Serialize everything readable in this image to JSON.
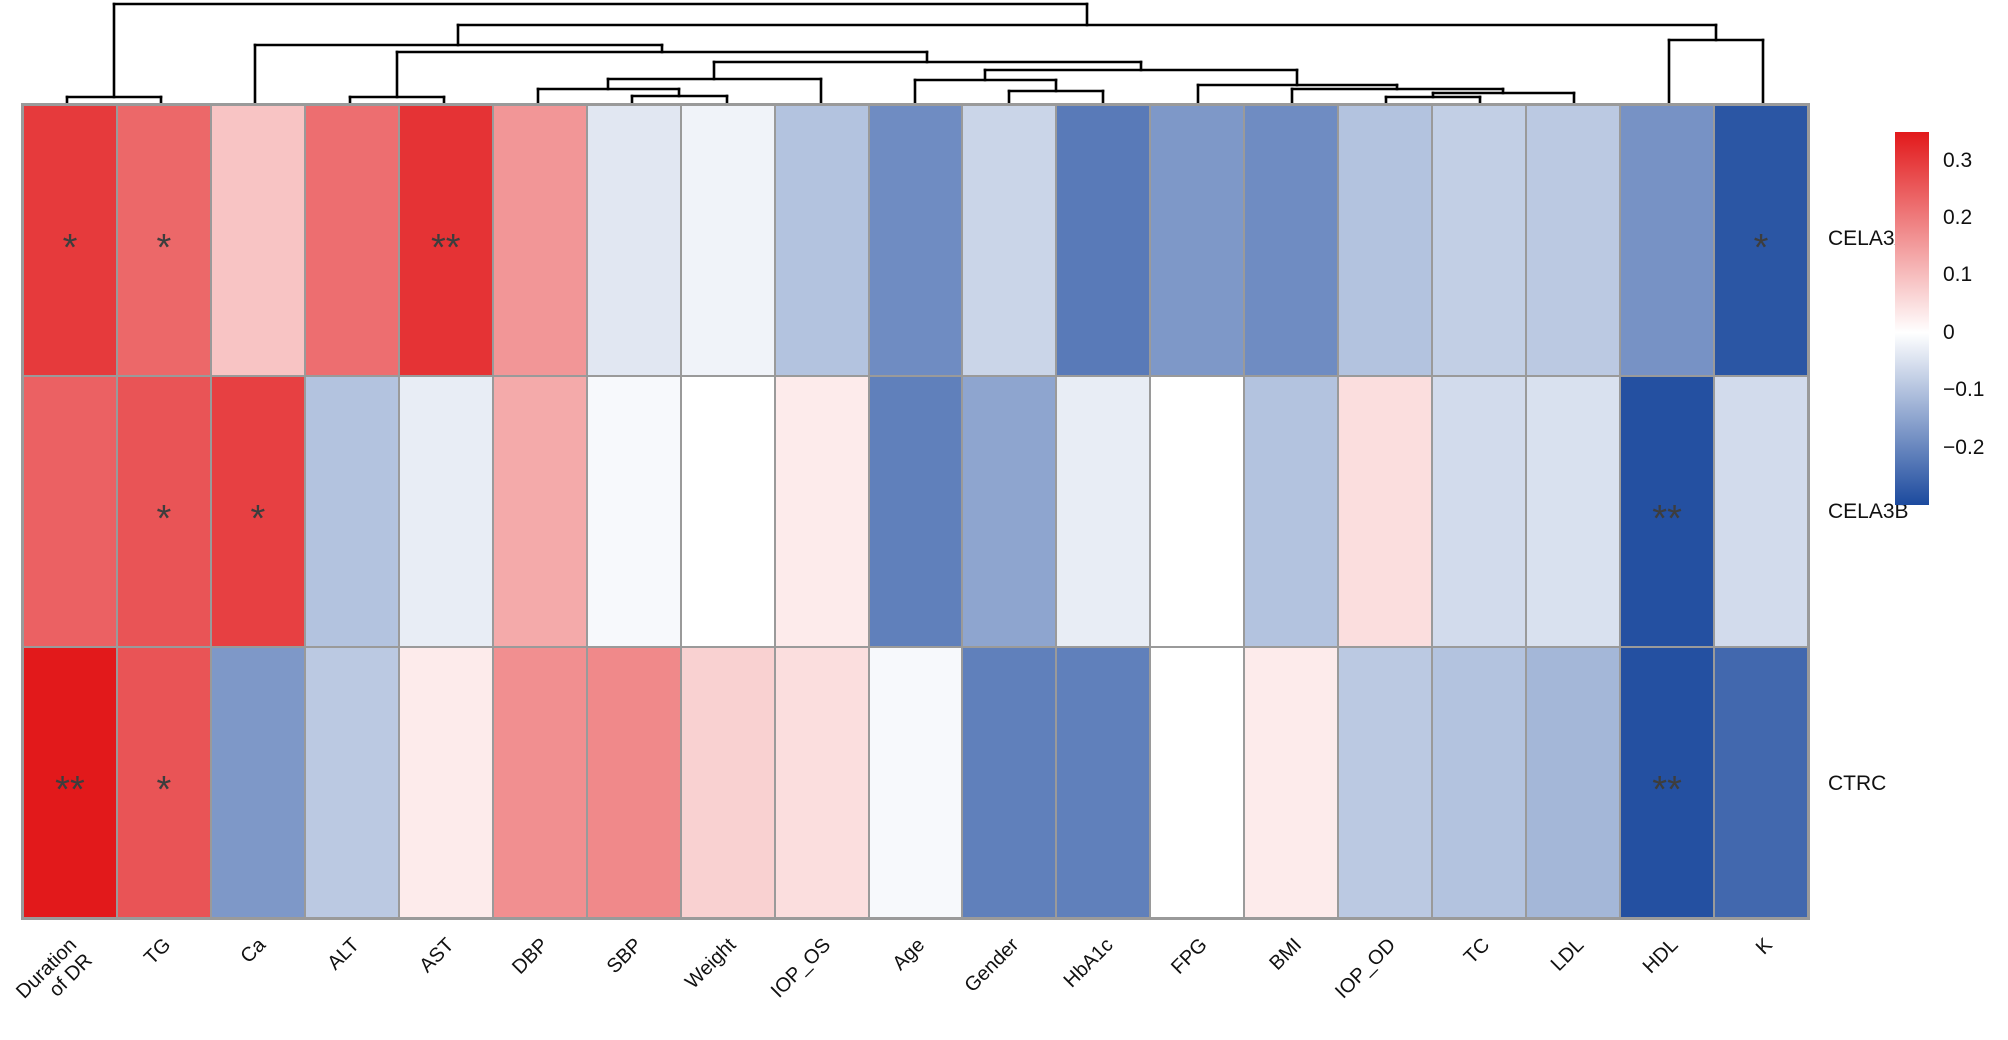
{
  "chart_data": {
    "type": "heatmap",
    "title": "",
    "rows": [
      "CELA3A",
      "CELA3B",
      "CTRC"
    ],
    "columns": [
      "Duration of DR",
      "TG",
      "Ca",
      "ALT",
      "AST",
      "DBP",
      "SBP",
      "Weight",
      "IOP_OS",
      "Age",
      "Gender",
      "HbA1c",
      "FPG",
      "BMI",
      "IOP_OD",
      "TC",
      "LDL",
      "HDL",
      "K"
    ],
    "columns_display": [
      "Duration\nof DR",
      "TG",
      "Ca",
      "ALT",
      "AST",
      "DBP",
      "SBP",
      "Weight",
      "IOP_OS",
      "Age",
      "Gender",
      "HbA1c",
      "FPG",
      "BMI",
      "IOP_OD",
      "TC",
      "LDL",
      "HDL",
      "K"
    ],
    "values": [
      [
        0.3,
        0.23,
        0.09,
        0.22,
        0.31,
        0.16,
        -0.04,
        -0.02,
        -0.1,
        -0.19,
        -0.07,
        -0.22,
        -0.17,
        -0.19,
        -0.1,
        -0.08,
        -0.09,
        -0.18,
        -0.28
      ],
      [
        0.24,
        0.26,
        0.29,
        -0.1,
        -0.03,
        0.13,
        -0.01,
        0.0,
        0.03,
        -0.21,
        -0.15,
        -0.03,
        0.0,
        -0.1,
        0.05,
        -0.06,
        -0.05,
        -0.29,
        -0.06
      ],
      [
        0.35,
        0.26,
        -0.17,
        -0.09,
        0.03,
        0.17,
        0.18,
        0.07,
        0.05,
        -0.01,
        -0.21,
        -0.21,
        0.0,
        0.03,
        -0.09,
        -0.1,
        -0.12,
        -0.29,
        -0.25
      ]
    ],
    "significance": [
      [
        "*",
        "*",
        "",
        "",
        "**",
        "",
        "",
        "",
        "",
        "",
        "",
        "",
        "",
        "",
        "",
        "",
        "",
        "",
        "*"
      ],
      [
        "",
        "*",
        "*",
        "",
        "",
        "",
        "",
        "",
        "",
        "",
        "",
        "",
        "",
        "",
        "",
        "",
        "",
        "**",
        ""
      ],
      [
        "**",
        "*",
        "",
        "",
        "",
        "",
        "",
        "",
        "",
        "",
        "",
        "",
        "",
        "",
        "",
        "",
        "",
        "**",
        ""
      ]
    ],
    "colorscale": {
      "vmax": 0.35,
      "vmin": -0.3,
      "max_color": "#e2191b",
      "zero_color": "#ffffff",
      "min_color": "#1c4a9e",
      "grid_color": "#9a9a9a",
      "ticks": [
        0.3,
        0.2,
        0.1,
        0,
        -0.1,
        -0.2
      ],
      "tick_labels": [
        "0.3",
        "0.2",
        "0.1",
        "0",
        "−0.1",
        "−0.2"
      ]
    },
    "legend_position": "right",
    "column_dendrogram": {
      "description": "hierarchical clustering tree over the 19 columns, drawn above the heatmap",
      "line_color": "#000000",
      "segments": [
        [
          67,
          97,
          161,
          97
        ],
        [
          67,
          97,
          67,
          103
        ],
        [
          161,
          97,
          161,
          103
        ],
        [
          114,
          97,
          114,
          4
        ],
        [
          114,
          4,
          1087,
          4
        ],
        [
          1087,
          4,
          1087,
          25
        ],
        [
          458,
          25,
          1716,
          25
        ],
        [
          458,
          25,
          458,
          45
        ],
        [
          1716,
          25,
          1716,
          40
        ],
        [
          1669,
          40,
          1763,
          40
        ],
        [
          1669,
          40,
          1669,
          103
        ],
        [
          1763,
          40,
          1763,
          103
        ],
        [
          255,
          45,
          662,
          45
        ],
        [
          255,
          45,
          255,
          103
        ],
        [
          662,
          45,
          662,
          52
        ],
        [
          397,
          52,
          927,
          52
        ],
        [
          397,
          52,
          397,
          97
        ],
        [
          927,
          52,
          927,
          62
        ],
        [
          350,
          97,
          444,
          97
        ],
        [
          350,
          97,
          350,
          103
        ],
        [
          444,
          97,
          444,
          103
        ],
        [
          714,
          62,
          1141,
          62
        ],
        [
          714,
          62,
          714,
          79
        ],
        [
          1141,
          62,
          1141,
          70
        ],
        [
          608,
          79,
          821,
          79
        ],
        [
          608,
          79,
          608,
          89
        ],
        [
          821,
          79,
          821,
          103
        ],
        [
          538,
          89,
          679,
          89
        ],
        [
          538,
          89,
          538,
          103
        ],
        [
          679,
          89,
          679,
          96
        ],
        [
          632,
          96,
          727,
          96
        ],
        [
          632,
          96,
          632,
          103
        ],
        [
          727,
          96,
          727,
          103
        ],
        [
          985,
          70,
          1297,
          70
        ],
        [
          985,
          70,
          985,
          80
        ],
        [
          1297,
          70,
          1297,
          85
        ],
        [
          915,
          80,
          1056,
          80
        ],
        [
          915,
          80,
          915,
          103
        ],
        [
          1056,
          80,
          1056,
          91
        ],
        [
          1009,
          91,
          1103,
          91
        ],
        [
          1009,
          91,
          1009,
          103
        ],
        [
          1103,
          91,
          1103,
          103
        ],
        [
          1198,
          85,
          1397,
          85
        ],
        [
          1198,
          85,
          1198,
          103
        ],
        [
          1397,
          85,
          1397,
          89
        ],
        [
          1292,
          89,
          1503,
          89
        ],
        [
          1292,
          89,
          1292,
          103
        ],
        [
          1503,
          89,
          1503,
          93
        ],
        [
          1433,
          93,
          1574,
          93
        ],
        [
          1433,
          93,
          1433,
          97
        ],
        [
          1574,
          93,
          1574,
          103
        ],
        [
          1386,
          97,
          1480,
          97
        ],
        [
          1386,
          97,
          1386,
          103
        ],
        [
          1480,
          97,
          1480,
          103
        ]
      ]
    }
  }
}
